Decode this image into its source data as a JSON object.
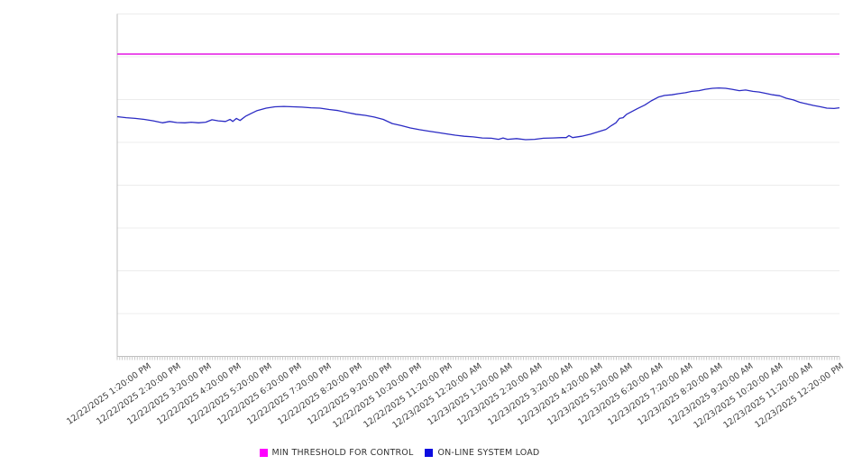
{
  "legend": {
    "items": [
      {
        "label": "MIN THRESHOLD FOR CONTROL",
        "swatch_color": "#FF00FF"
      },
      {
        "label": "ON-LINE SYSTEM LOAD",
        "swatch_color": "#0D0DE0"
      }
    ]
  },
  "colors": {
    "threshold_line": "#E317E3",
    "load_line": "#2B2BC4",
    "gridline": "#ECECEC",
    "axis": "#BDBDBD",
    "tick": "#C9C9C9",
    "label_text": "#404040"
  },
  "chart_data": {
    "type": "line",
    "title": "",
    "xlabel": "",
    "ylabel": "",
    "x_axis": {
      "tick_labels": [
        "12/22/2025 1:20:00 PM",
        "12/22/2025 2:20:00 PM",
        "12/22/2025 3:20:00 PM",
        "12/22/2025 4:20:00 PM",
        "12/22/2025 5:20:00 PM",
        "12/22/2025 6:20:00 PM",
        "12/22/2025 7:20:00 PM",
        "12/22/2025 8:20:00 PM",
        "12/22/2025 9:20:00 PM",
        "12/22/2025 10:20:00 PM",
        "12/22/2025 11:20:00 PM",
        "12/23/2025 12:20:00 AM",
        "12/23/2025 1:20:00 AM",
        "12/23/2025 2:20:00 AM",
        "12/23/2025 3:20:00 AM",
        "12/23/2025 4:20:00 AM",
        "12/23/2025 5:20:00 AM",
        "12/23/2025 6:20:00 AM",
        "12/23/2025 7:20:00 AM",
        "12/23/2025 8:20:00 AM",
        "12/23/2025 9:20:00 AM",
        "12/23/2025 10:20:00 AM",
        "12/23/2025 11:20:00 AM",
        "12/23/2025 12:20:00 PM"
      ],
      "label_interval_hours": 1,
      "minor_tick_interval_minutes": 5,
      "range_hours": [
        0,
        24
      ]
    },
    "y_axis": {
      "tick_labels_visible": false,
      "gridline_rows": 8,
      "value_scale": "fraction_of_plot_height_from_bottom"
    },
    "legend_position": "bottom-center",
    "series": [
      {
        "name": "MIN THRESHOLD FOR CONTROL",
        "style": "horizontal-threshold",
        "value_frac": 0.883
      },
      {
        "name": "ON-LINE SYSTEM LOAD",
        "style": "line",
        "points_hour_frac": [
          [
            0.0,
            0.7
          ],
          [
            0.3,
            0.697
          ],
          [
            0.6,
            0.695
          ],
          [
            0.9,
            0.692
          ],
          [
            1.2,
            0.688
          ],
          [
            1.5,
            0.682
          ],
          [
            1.74,
            0.686
          ],
          [
            1.98,
            0.683
          ],
          [
            2.25,
            0.682
          ],
          [
            2.46,
            0.684
          ],
          [
            2.7,
            0.682
          ],
          [
            2.94,
            0.684
          ],
          [
            3.15,
            0.691
          ],
          [
            3.36,
            0.688
          ],
          [
            3.6,
            0.686
          ],
          [
            3.75,
            0.692
          ],
          [
            3.84,
            0.686
          ],
          [
            3.96,
            0.695
          ],
          [
            4.08,
            0.689
          ],
          [
            4.26,
            0.701
          ],
          [
            4.44,
            0.709
          ],
          [
            4.65,
            0.718
          ],
          [
            4.95,
            0.725
          ],
          [
            5.24,
            0.729
          ],
          [
            5.54,
            0.73
          ],
          [
            5.84,
            0.729
          ],
          [
            6.14,
            0.728
          ],
          [
            6.44,
            0.726
          ],
          [
            6.74,
            0.725
          ],
          [
            7.04,
            0.721
          ],
          [
            7.34,
            0.718
          ],
          [
            7.64,
            0.712
          ],
          [
            7.94,
            0.707
          ],
          [
            8.24,
            0.704
          ],
          [
            8.54,
            0.699
          ],
          [
            8.84,
            0.692
          ],
          [
            9.14,
            0.68
          ],
          [
            9.44,
            0.674
          ],
          [
            9.74,
            0.667
          ],
          [
            10.04,
            0.662
          ],
          [
            10.34,
            0.658
          ],
          [
            10.64,
            0.654
          ],
          [
            10.93,
            0.65
          ],
          [
            11.23,
            0.646
          ],
          [
            11.53,
            0.643
          ],
          [
            11.83,
            0.641
          ],
          [
            12.13,
            0.638
          ],
          [
            12.43,
            0.637
          ],
          [
            12.67,
            0.634
          ],
          [
            12.82,
            0.638
          ],
          [
            12.97,
            0.634
          ],
          [
            13.27,
            0.636
          ],
          [
            13.57,
            0.633
          ],
          [
            13.87,
            0.634
          ],
          [
            14.17,
            0.637
          ],
          [
            14.47,
            0.638
          ],
          [
            14.77,
            0.639
          ],
          [
            14.92,
            0.639
          ],
          [
            15.01,
            0.645
          ],
          [
            15.13,
            0.639
          ],
          [
            15.43,
            0.643
          ],
          [
            15.73,
            0.649
          ],
          [
            16.03,
            0.657
          ],
          [
            16.24,
            0.663
          ],
          [
            16.42,
            0.674
          ],
          [
            16.57,
            0.682
          ],
          [
            16.69,
            0.695
          ],
          [
            16.81,
            0.697
          ],
          [
            16.93,
            0.707
          ],
          [
            17.08,
            0.714
          ],
          [
            17.29,
            0.724
          ],
          [
            17.53,
            0.734
          ],
          [
            17.74,
            0.746
          ],
          [
            17.98,
            0.757
          ],
          [
            18.19,
            0.762
          ],
          [
            18.43,
            0.764
          ],
          [
            18.64,
            0.767
          ],
          [
            18.88,
            0.77
          ],
          [
            19.09,
            0.774
          ],
          [
            19.33,
            0.776
          ],
          [
            19.54,
            0.78
          ],
          [
            19.78,
            0.783
          ],
          [
            19.99,
            0.784
          ],
          [
            20.22,
            0.783
          ],
          [
            20.43,
            0.78
          ],
          [
            20.67,
            0.776
          ],
          [
            20.88,
            0.778
          ],
          [
            21.12,
            0.774
          ],
          [
            21.33,
            0.772
          ],
          [
            21.57,
            0.768
          ],
          [
            21.78,
            0.764
          ],
          [
            22.02,
            0.761
          ],
          [
            22.23,
            0.754
          ],
          [
            22.47,
            0.749
          ],
          [
            22.68,
            0.742
          ],
          [
            22.92,
            0.737
          ],
          [
            23.13,
            0.733
          ],
          [
            23.37,
            0.729
          ],
          [
            23.58,
            0.725
          ],
          [
            23.82,
            0.724
          ],
          [
            24.0,
            0.726
          ]
        ]
      }
    ]
  }
}
